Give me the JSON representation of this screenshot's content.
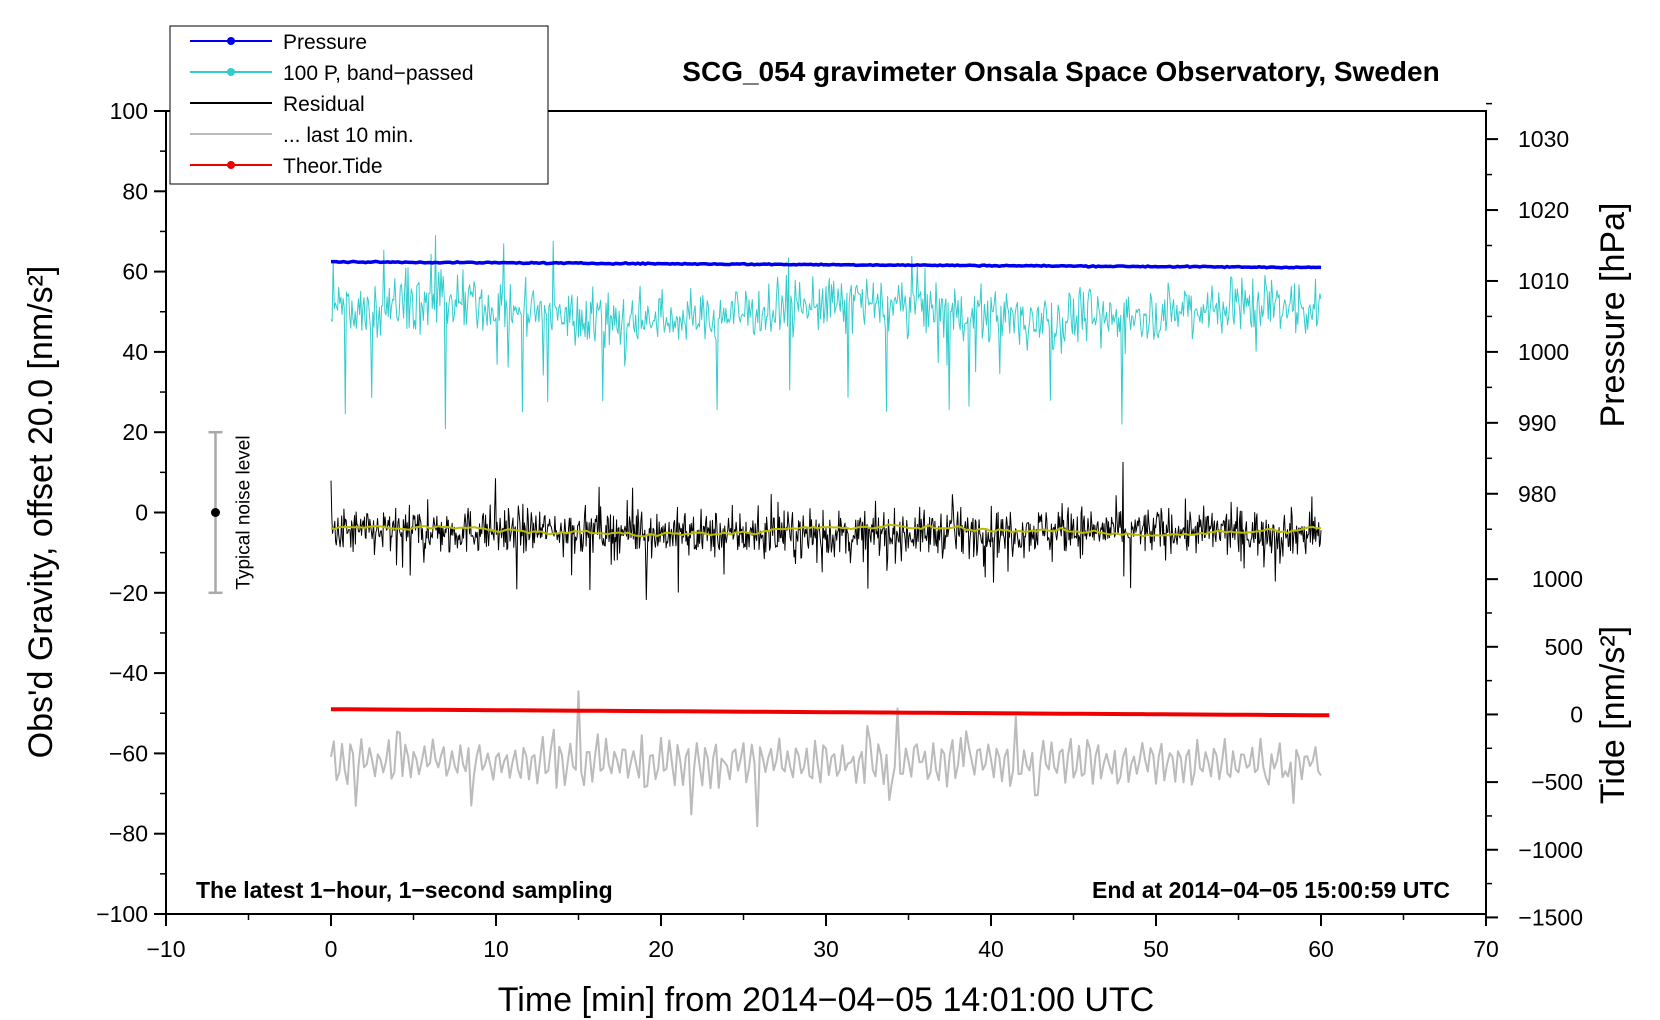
{
  "chart_data": {
    "type": "line",
    "title": "SCG_054 gravimeter Onsala Space Observatory, Sweden",
    "xlabel": "Time [min] from 2014−04−05 14:01:00 UTC",
    "ylabel_left": "Obs'd Gravity, offset 20.0 [nm/s²]",
    "ylabel_right_top": "Pressure [hPa]",
    "ylabel_right_bottom": "Tide [nm/s²]",
    "xlim": [
      -10,
      70
    ],
    "ylim_left": [
      -100,
      100
    ],
    "x_ticks": [
      "−10",
      "0",
      "10",
      "20",
      "30",
      "40",
      "50",
      "60",
      "70"
    ],
    "x_tick_values": [
      -10,
      0,
      10,
      20,
      30,
      40,
      50,
      60,
      70
    ],
    "y_left_ticks": [
      "100",
      "80",
      "60",
      "40",
      "20",
      "0",
      "−20",
      "−40",
      "−60",
      "−80",
      "−100"
    ],
    "y_left_tick_values": [
      100,
      80,
      60,
      40,
      20,
      0,
      -20,
      -40,
      -60,
      -80,
      -100
    ],
    "pressure_axis": {
      "ticks": [
        "1030",
        "1020",
        "1010",
        "1000",
        "990",
        "980"
      ],
      "tick_values": [
        1030,
        1020,
        1010,
        1000,
        990,
        980
      ],
      "map": {
        "hpa": [
          1000,
          1030
        ],
        "left_units": [
          40,
          93
        ]
      }
    },
    "tide_axis": {
      "ticks": [
        "1000",
        "500",
        "0",
        "−500",
        "−1000",
        "−1500"
      ],
      "tick_values": [
        1000,
        500,
        0,
        -500,
        -1000,
        -1500
      ],
      "map": {
        "nms2": [
          0,
          1000
        ],
        "left_units": [
          -50.3,
          -16.6
        ]
      }
    },
    "legend": [
      {
        "label": "Pressure",
        "color": "#0000ee",
        "marker": true
      },
      {
        "label": "100 P, band−passed",
        "color": "#33cccc",
        "marker": true
      },
      {
        "label": "Residual",
        "color": "#000000",
        "marker": false
      },
      {
        "label": "... last 10 min.",
        "color": "#bbbbbb",
        "marker": false
      },
      {
        "label": "Theor.Tide",
        "color": "#ee0000",
        "marker": true
      }
    ],
    "series": [
      {
        "name": "Pressure",
        "color": "#0000ee",
        "start": 1012.7,
        "end": 1011.9
      },
      {
        "name": "100 P, band−passed",
        "color": "#33cccc",
        "center": 50,
        "amplitude": 5
      },
      {
        "name": "Residual",
        "color": "#000000",
        "center": -5,
        "amplitude": 4
      },
      {
        "name": "Residual smoothed",
        "color": "#bbbb00",
        "center": -4.5
      },
      {
        "name": "... last 10 min.",
        "color": "#bbbbbb",
        "center": -62,
        "amplitude": 4
      },
      {
        "name": "Theor.Tide",
        "color": "#ee0000",
        "start": -49.0,
        "end": -50.5
      }
    ],
    "x_range_data": [
      0,
      60
    ],
    "noise_bar": {
      "label": "Typical noise level",
      "x": -7,
      "center": 0,
      "low": -20,
      "high": 20
    },
    "annotations": {
      "bottom_left": "The latest 1−hour, 1−second sampling",
      "bottom_right": "End at 2014−04−05 15:00:59 UTC"
    },
    "colors": {
      "pressure": "#0000ee",
      "bandpassed": "#33cccc",
      "residual": "#000000",
      "smoothed": "#bbbb00",
      "last10": "#bbbbbb",
      "tide": "#ee0000",
      "noise_bar": "#aaaaaa"
    }
  }
}
